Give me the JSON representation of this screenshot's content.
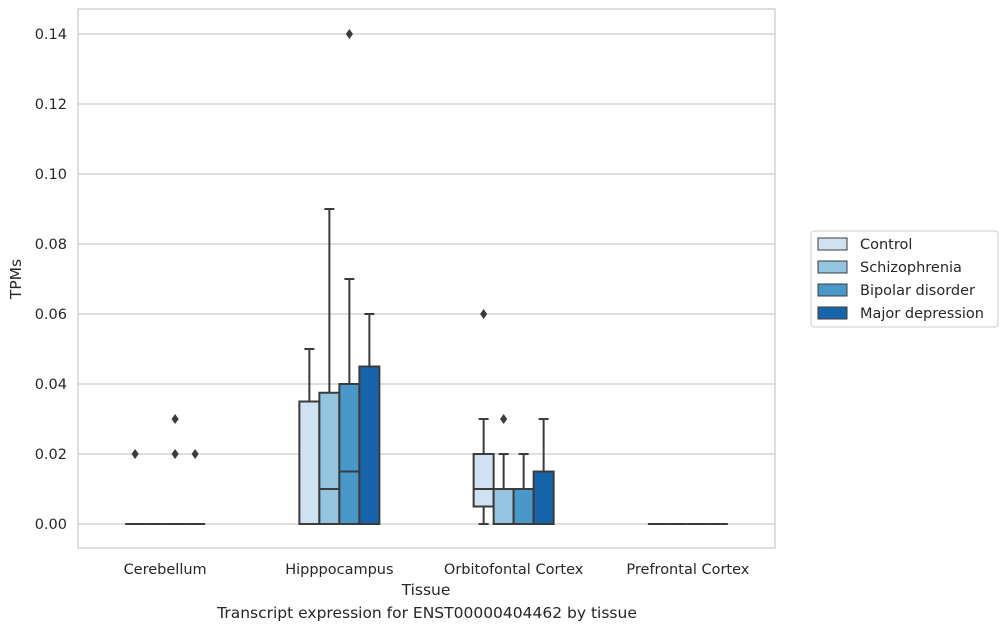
{
  "caption": "Transcript expression for ENST00000404462 by tissue",
  "chart_data": {
    "type": "boxplot",
    "xlabel": "Tissue",
    "ylabel": "TPMs",
    "ylim": [
      -0.007,
      0.147
    ],
    "yticks": [
      "0.00",
      "0.02",
      "0.04",
      "0.06",
      "0.08",
      "0.10",
      "0.12",
      "0.14"
    ],
    "grid": "horizontal",
    "legend_position": "right",
    "categories": [
      "Cerebellum",
      "Hipppocampus",
      "Orbitofontal Cortex",
      "Prefrontal Cortex"
    ],
    "series": [
      {
        "name": "Control",
        "color": "#d0e1f2",
        "boxes": [
          {
            "q1": 0,
            "median": 0,
            "q3": 0,
            "whisker_low": 0,
            "whisker_high": 0,
            "outliers": [
              0.02
            ]
          },
          {
            "q1": 0,
            "median": 0,
            "q3": 0.035,
            "whisker_low": 0,
            "whisker_high": 0.05,
            "outliers": []
          },
          {
            "q1": 0.005,
            "median": 0.01,
            "q3": 0.02,
            "whisker_low": 0,
            "whisker_high": 0.03,
            "outliers": [
              0.06
            ]
          },
          {
            "q1": 0,
            "median": 0,
            "q3": 0,
            "whisker_low": 0,
            "whisker_high": 0,
            "outliers": []
          }
        ]
      },
      {
        "name": "Schizophrenia",
        "color": "#94c4df",
        "boxes": [
          {
            "q1": 0,
            "median": 0,
            "q3": 0,
            "whisker_low": 0,
            "whisker_high": 0,
            "outliers": []
          },
          {
            "q1": 0,
            "median": 0.01,
            "q3": 0.0375,
            "whisker_low": 0,
            "whisker_high": 0.09,
            "outliers": []
          },
          {
            "q1": 0,
            "median": 0.01,
            "q3": 0.01,
            "whisker_low": 0,
            "whisker_high": 0.02,
            "outliers": [
              0.03
            ]
          },
          {
            "q1": 0,
            "median": 0,
            "q3": 0,
            "whisker_low": 0,
            "whisker_high": 0,
            "outliers": []
          }
        ]
      },
      {
        "name": "Bipolar disorder",
        "color": "#4a98c9",
        "boxes": [
          {
            "q1": 0,
            "median": 0,
            "q3": 0,
            "whisker_low": 0,
            "whisker_high": 0,
            "outliers": [
              0.03,
              0.02
            ]
          },
          {
            "q1": 0,
            "median": 0.015,
            "q3": 0.04,
            "whisker_low": 0,
            "whisker_high": 0.07,
            "outliers": [
              0.14
            ]
          },
          {
            "q1": 0,
            "median": 0.01,
            "q3": 0.01,
            "whisker_low": 0,
            "whisker_high": 0.02,
            "outliers": []
          },
          {
            "q1": 0,
            "median": 0,
            "q3": 0,
            "whisker_low": 0,
            "whisker_high": 0,
            "outliers": []
          }
        ]
      },
      {
        "name": "Major depression",
        "color": "#1764ab",
        "boxes": [
          {
            "q1": 0,
            "median": 0,
            "q3": 0,
            "whisker_low": 0,
            "whisker_high": 0,
            "outliers": [
              0.02
            ]
          },
          {
            "q1": 0,
            "median": 0,
            "q3": 0.045,
            "whisker_low": 0,
            "whisker_high": 0.06,
            "outliers": []
          },
          {
            "q1": 0,
            "median": 0,
            "q3": 0.015,
            "whisker_low": 0,
            "whisker_high": 0.03,
            "outliers": []
          },
          {
            "q1": 0,
            "median": 0,
            "q3": 0,
            "whisker_low": 0,
            "whisker_high": 0,
            "outliers": []
          }
        ]
      }
    ]
  }
}
